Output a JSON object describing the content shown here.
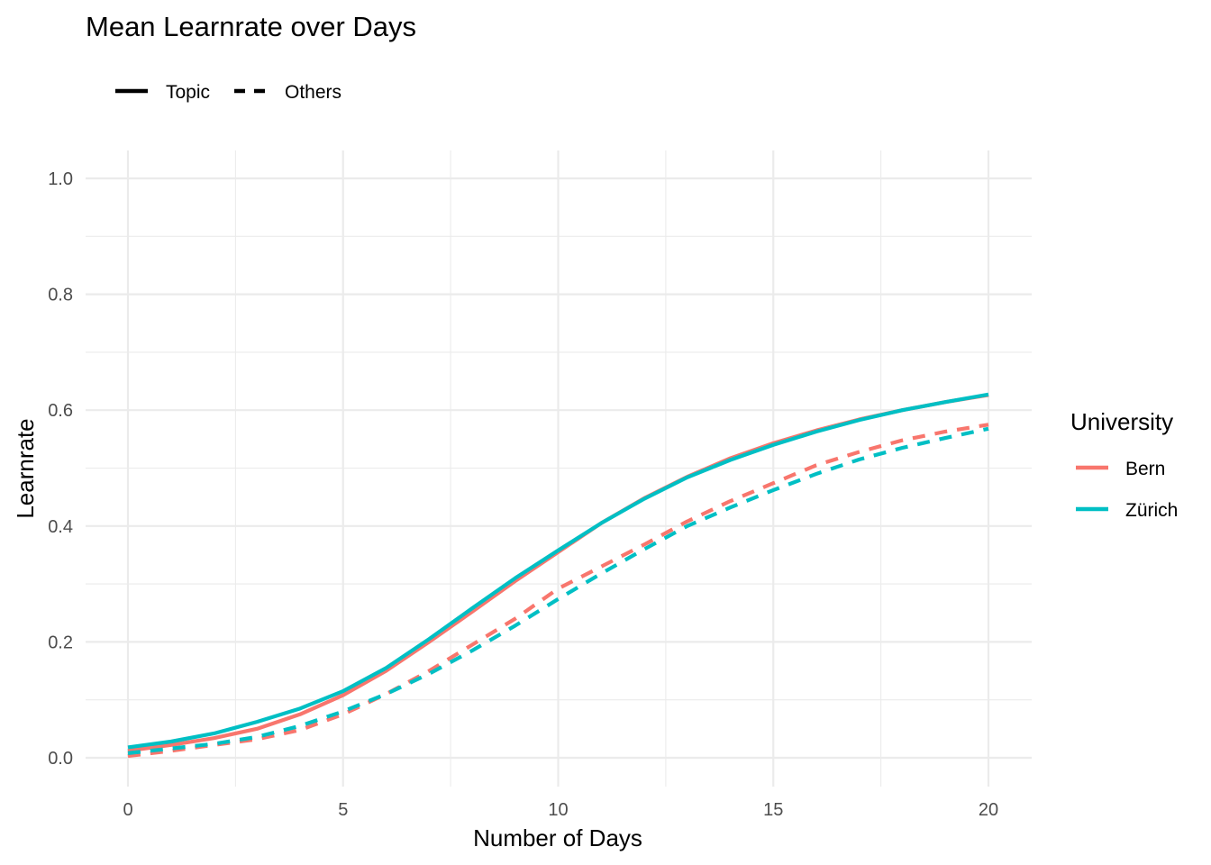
{
  "chart_data": {
    "type": "line",
    "title": "Mean Learnrate over Days",
    "xlabel": "Number of Days",
    "ylabel": "Learnrate",
    "xlim": [
      0,
      20
    ],
    "ylim": [
      0,
      1
    ],
    "x_ticks": [
      "0",
      "5",
      "10",
      "15",
      "20"
    ],
    "y_ticks": [
      "0.0",
      "0.2",
      "0.4",
      "0.6",
      "0.8",
      "1.0"
    ],
    "grid": true,
    "linetype_legend": {
      "placement": "top-left",
      "entries": [
        {
          "label": "Topic",
          "style": "solid"
        },
        {
          "label": "Others",
          "style": "dashed"
        }
      ]
    },
    "color_legend": {
      "title": "University",
      "placement": "right",
      "entries": [
        {
          "label": "Bern",
          "color": "#F8766D"
        },
        {
          "label": "Zürich",
          "color": "#00BFC4"
        }
      ]
    },
    "x": [
      0,
      1,
      2,
      3,
      4,
      5,
      6,
      7,
      8,
      9,
      10,
      11,
      12,
      13,
      14,
      15,
      16,
      17,
      18,
      19,
      20
    ],
    "series": [
      {
        "university": "Bern",
        "topic": "Topic",
        "color": "#F8766D",
        "style": "solid",
        "values": [
          0.012,
          0.022,
          0.034,
          0.05,
          0.075,
          0.108,
          0.15,
          0.2,
          0.252,
          0.305,
          0.355,
          0.405,
          0.448,
          0.485,
          0.517,
          0.543,
          0.565,
          0.584,
          0.6,
          0.614,
          0.626
        ]
      },
      {
        "university": "Zürich",
        "topic": "Topic",
        "color": "#00BFC4",
        "style": "solid",
        "values": [
          0.018,
          0.028,
          0.042,
          0.062,
          0.085,
          0.115,
          0.155,
          0.205,
          0.258,
          0.31,
          0.358,
          0.405,
          0.447,
          0.484,
          0.514,
          0.54,
          0.563,
          0.583,
          0.6,
          0.614,
          0.627
        ]
      },
      {
        "university": "Bern",
        "topic": "Others",
        "color": "#F8766D",
        "style": "dashed",
        "values": [
          0.003,
          0.012,
          0.022,
          0.032,
          0.048,
          0.075,
          0.11,
          0.15,
          0.195,
          0.24,
          0.292,
          0.33,
          0.368,
          0.408,
          0.443,
          0.474,
          0.505,
          0.528,
          0.548,
          0.563,
          0.575
        ]
      },
      {
        "university": "Zürich",
        "topic": "Others",
        "color": "#00BFC4",
        "style": "dashed",
        "values": [
          0.008,
          0.016,
          0.024,
          0.036,
          0.055,
          0.08,
          0.11,
          0.145,
          0.185,
          0.228,
          0.274,
          0.318,
          0.36,
          0.4,
          0.432,
          0.462,
          0.49,
          0.515,
          0.535,
          0.552,
          0.568
        ]
      }
    ]
  }
}
